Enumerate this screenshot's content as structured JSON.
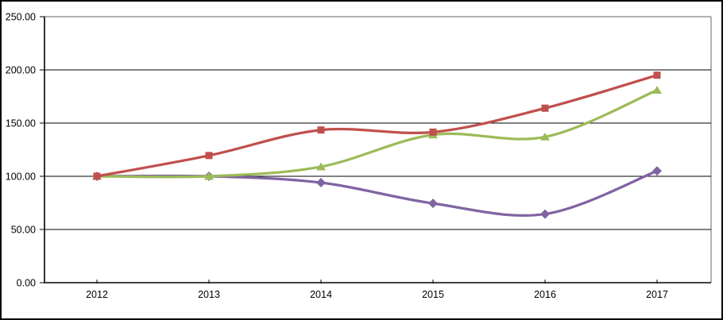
{
  "chart_data": {
    "type": "line",
    "title": "",
    "xlabel": "",
    "ylabel": "",
    "line_style": "smooth",
    "grid": true,
    "legend": "none",
    "x_categories": [
      "2012",
      "2013",
      "2014",
      "2015",
      "2016",
      "2017"
    ],
    "ylim": [
      0,
      250
    ],
    "ytick_step": 50,
    "ytick_labels": [
      "0.00",
      "50.00",
      "100.00",
      "150.00",
      "200.00",
      "250.00"
    ],
    "series": [
      {
        "name": "red-squares-series",
        "marker": "square",
        "color": "#C0504D",
        "values": [
          100,
          119.5,
          143.5,
          141.5,
          164,
          195
        ]
      },
      {
        "name": "green-triangles-series",
        "marker": "triangle",
        "color": "#9BBB59",
        "values": [
          100,
          100,
          109,
          139,
          137,
          181
        ]
      },
      {
        "name": "purple-diamonds-series",
        "marker": "diamond",
        "color": "#8064A2",
        "values": [
          100,
          100,
          94,
          74.5,
          64.5,
          105
        ]
      }
    ],
    "style": {
      "axis_color": "#000000",
      "gridline_color": "#000000",
      "plot_border_color": "#808080",
      "outer_border_color": "#000000",
      "background_color": "#FFFFFF",
      "tick_label_color": "#000000"
    }
  }
}
